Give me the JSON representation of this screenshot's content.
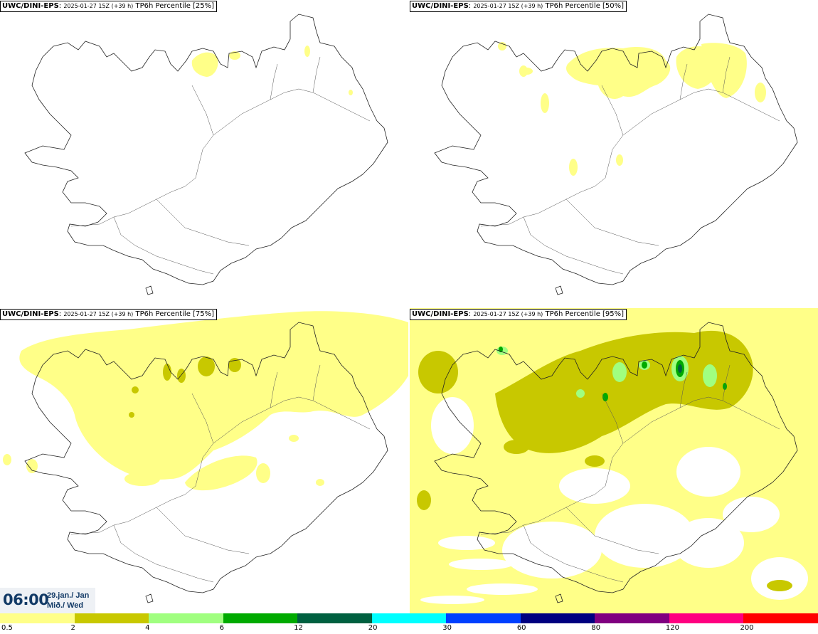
{
  "panels": [
    {
      "source": "UWC/DINI-EPS",
      "run": "2025-01-27 15Z (+39 h)",
      "title": "TP6h Percentile [25%]"
    },
    {
      "source": "UWC/DINI-EPS",
      "run": "2025-01-27 15Z (+39 h)",
      "title": "TP6h Percentile [50%]"
    },
    {
      "source": "UWC/DINI-EPS",
      "run": "2025-01-27 15Z (+39 h)",
      "title": "TP6h Percentile [75%]"
    },
    {
      "source": "UWC/DINI-EPS",
      "run": "2025-01-27 15Z (+39 h)",
      "title": "TP6h Percentile [95%]"
    }
  ],
  "valid_time": {
    "time": "06:00",
    "date_line1": "29.jan./ Jan",
    "date_line2": "Mið./ Wed"
  },
  "legend": {
    "thresholds": [
      "0.5",
      "2",
      "4",
      "6",
      "12",
      "20",
      "30",
      "60",
      "80",
      "120",
      "200"
    ],
    "colors": [
      "#ffff88",
      "#c8c800",
      "#a0ff80",
      "#00aa00",
      "#006040",
      "#00ffff",
      "#0040ff",
      "#000080",
      "#800080",
      "#ff0080",
      "#ff0000"
    ]
  },
  "map": {
    "region": "Iceland",
    "field_colors": {
      "light": "#ffff88",
      "medium": "#c8c800",
      "heavy": "#a0ff80",
      "peak": "#00aa00"
    }
  }
}
